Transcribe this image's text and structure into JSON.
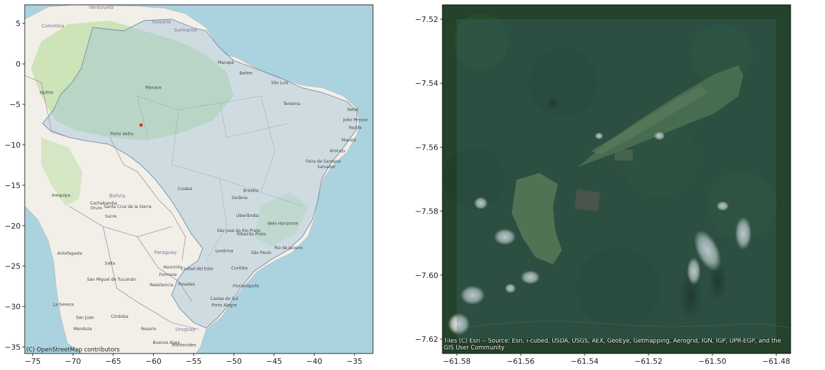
{
  "left_map": {
    "basemap": "OpenStreetMap",
    "attribution": "(C) OpenStreetMap contributors",
    "x_ticks": [
      -75,
      -70,
      -65,
      -60,
      -55,
      -50,
      -45,
      -40,
      -35
    ],
    "y_ticks": [
      5,
      0,
      -5,
      -10,
      -15,
      -20,
      -25,
      -30,
      -35
    ],
    "x_range": [
      -76.0,
      -32.7
    ],
    "y_range": [
      7.3,
      -35.8
    ],
    "point": {
      "lon": -61.53,
      "lat": -7.57,
      "color": "#e8241f"
    },
    "countries": [
      {
        "name": "Venezuela",
        "lon": -66.5,
        "lat": 6.8
      },
      {
        "name": "Colombia",
        "lon": -72.5,
        "lat": 4.5
      },
      {
        "name": "Guyana",
        "lon": -59.0,
        "lat": 5.0
      },
      {
        "name": "Suriname",
        "lon": -56.0,
        "lat": 4.0
      },
      {
        "name": "Bolivia",
        "lon": -64.5,
        "lat": -16.5
      },
      {
        "name": "Paraguay",
        "lon": -58.5,
        "lat": -23.5
      },
      {
        "name": "Uruguay",
        "lon": -56.0,
        "lat": -33.0
      }
    ],
    "cities": [
      {
        "name": "Manaus",
        "lon": -60.0,
        "lat": -3.1
      },
      {
        "name": "Belém",
        "lon": -48.5,
        "lat": -1.3
      },
      {
        "name": "Macapá",
        "lon": -51.0,
        "lat": 0.0
      },
      {
        "name": "São Luís",
        "lon": -44.3,
        "lat": -2.5
      },
      {
        "name": "Teresina",
        "lon": -42.8,
        "lat": -5.1
      },
      {
        "name": "Natal",
        "lon": -35.2,
        "lat": -5.8
      },
      {
        "name": "João Pessoa",
        "lon": -34.9,
        "lat": -7.1
      },
      {
        "name": "Recife",
        "lon": -34.9,
        "lat": -8.05
      },
      {
        "name": "Maceió",
        "lon": -35.7,
        "lat": -9.6
      },
      {
        "name": "Aracaju",
        "lon": -37.1,
        "lat": -10.9
      },
      {
        "name": "Feira de Santana",
        "lon": -38.9,
        "lat": -12.2
      },
      {
        "name": "Salvador",
        "lon": -38.5,
        "lat": -12.9
      },
      {
        "name": "Porto Velho",
        "lon": -63.9,
        "lat": -8.8
      },
      {
        "name": "Cuiabá",
        "lon": -56.1,
        "lat": -15.6
      },
      {
        "name": "Brasília",
        "lon": -47.9,
        "lat": -15.8
      },
      {
        "name": "Goiânia",
        "lon": -49.3,
        "lat": -16.7
      },
      {
        "name": "Uberlândia",
        "lon": -48.3,
        "lat": -18.9
      },
      {
        "name": "Belo Horizonte",
        "lon": -43.9,
        "lat": -19.9
      },
      {
        "name": "São José do Rio Preto",
        "lon": -49.4,
        "lat": -20.8
      },
      {
        "name": "Ribeirão Preto",
        "lon": -47.8,
        "lat": -21.2
      },
      {
        "name": "Londrina",
        "lon": -51.2,
        "lat": -23.3
      },
      {
        "name": "São Paulo",
        "lon": -46.6,
        "lat": -23.5
      },
      {
        "name": "Rio de Janeiro",
        "lon": -43.2,
        "lat": -22.9
      },
      {
        "name": "Curitiba",
        "lon": -49.3,
        "lat": -25.4
      },
      {
        "name": "Florianópolis",
        "lon": -48.5,
        "lat": -27.6
      },
      {
        "name": "Caxias do Sul",
        "lon": -51.2,
        "lat": -29.2
      },
      {
        "name": "Porto Alegre",
        "lon": -51.2,
        "lat": -30.0
      },
      {
        "name": "Iquitos",
        "lon": -73.3,
        "lat": -3.7
      },
      {
        "name": "Arequipa",
        "lon": -71.5,
        "lat": -16.4
      },
      {
        "name": "Cochabamba",
        "lon": -66.2,
        "lat": -17.4
      },
      {
        "name": "Santa Cruz de la Sierra",
        "lon": -63.2,
        "lat": -17.8
      },
      {
        "name": "Oruro",
        "lon": -67.1,
        "lat": -18.0
      },
      {
        "name": "Sucre",
        "lon": -65.3,
        "lat": -19.0
      },
      {
        "name": "Antofagasta",
        "lon": -70.4,
        "lat": -23.6
      },
      {
        "name": "Asunción",
        "lon": -57.6,
        "lat": -25.3
      },
      {
        "name": "Salta",
        "lon": -65.4,
        "lat": -24.8
      },
      {
        "name": "Formosa",
        "lon": -58.2,
        "lat": -26.2
      },
      {
        "name": "San Miguel de Tucumán",
        "lon": -65.2,
        "lat": -26.8
      },
      {
        "name": "Resistencia",
        "lon": -59.0,
        "lat": -27.5
      },
      {
        "name": "Posadas",
        "lon": -55.9,
        "lat": -27.4
      },
      {
        "name": "Ciudad del Este",
        "lon": -54.6,
        "lat": -25.5
      },
      {
        "name": "La Serena",
        "lon": -71.2,
        "lat": -29.9
      },
      {
        "name": "Córdoba",
        "lon": -64.2,
        "lat": -31.4
      },
      {
        "name": "San Juan",
        "lon": -68.5,
        "lat": -31.5
      },
      {
        "name": "Rosario",
        "lon": -60.6,
        "lat": -32.9
      },
      {
        "name": "Mendoza",
        "lon": -68.8,
        "lat": -32.9
      },
      {
        "name": "Montevideo",
        "lon": -56.2,
        "lat": -34.9
      },
      {
        "name": "Buenos Aires",
        "lon": -58.4,
        "lat": -34.6
      }
    ]
  },
  "right_map": {
    "basemap": "Esri World Imagery",
    "attribution": "Tiles (C) Esri -- Source: Esri, i-cubed, USDA, USGS, AEX, GeoEye, Getmapping, Aerogrid, IGN, IGP, UPR-EGP, and the GIS User Community",
    "x_ticks": [
      -61.58,
      -61.56,
      -61.54,
      -61.52,
      -61.5,
      -61.48
    ],
    "y_ticks": [
      -7.52,
      -7.54,
      -7.56,
      -7.58,
      -7.6,
      -7.62
    ],
    "x_range": [
      -61.5845,
      -61.4755
    ],
    "y_range": [
      -7.5155,
      -7.6245
    ],
    "aoi_box": {
      "lon_min": -61.58,
      "lon_max": -61.48,
      "lat_min": -7.62,
      "lat_max": -7.52
    }
  },
  "colors": {
    "ocean": "#aad3df",
    "land": "#f2efe9",
    "brazil_overlay": "#b9cfe0",
    "forest": "#c9e2b3",
    "point": "#e8241f",
    "aoi_overlay": "#3f6b74"
  }
}
